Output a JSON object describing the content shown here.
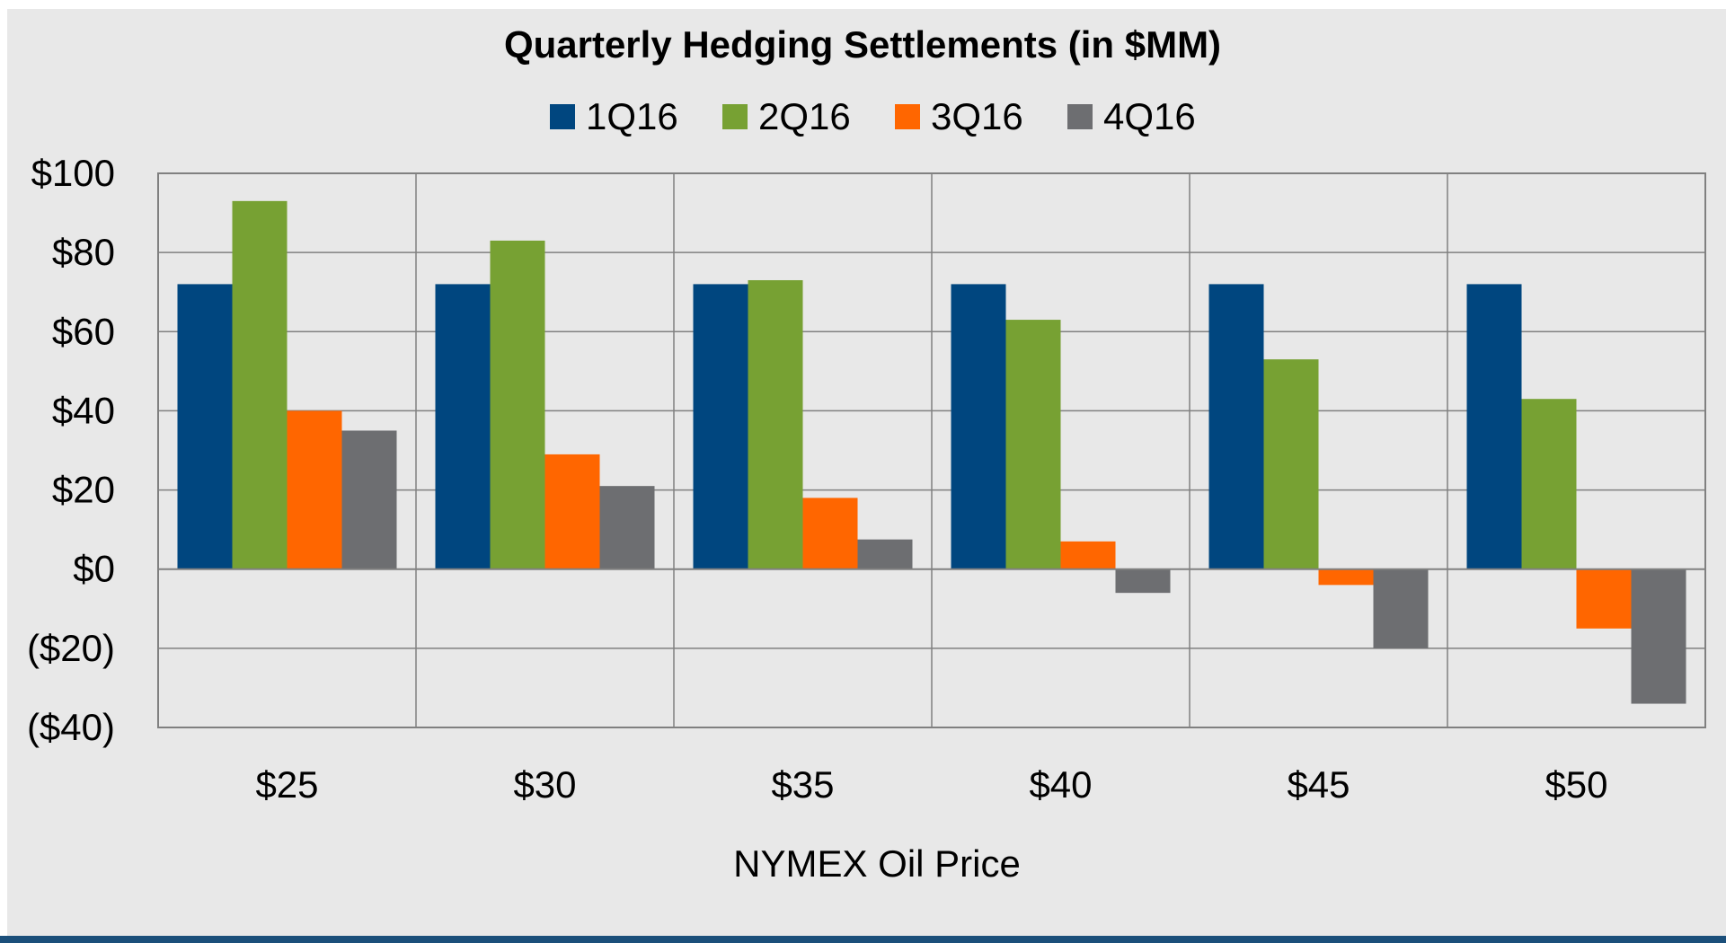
{
  "chart_data": {
    "type": "bar",
    "title": "Quarterly Hedging Settlements (in $MM)",
    "xlabel": "NYMEX Oil Price",
    "ylabel": "",
    "categories": [
      "$25",
      "$30",
      "$35",
      "$40",
      "$45",
      "$50"
    ],
    "series": [
      {
        "name": "1Q16",
        "color": "#00467f",
        "values": [
          72,
          72,
          72,
          72,
          72,
          72
        ]
      },
      {
        "name": "2Q16",
        "color": "#77a133",
        "values": [
          93,
          83,
          73,
          63,
          53,
          43
        ]
      },
      {
        "name": "3Q16",
        "color": "#ff6600",
        "values": [
          40,
          29,
          18,
          7,
          -4,
          -15
        ]
      },
      {
        "name": "4Q16",
        "color": "#6d6e71",
        "values": [
          35,
          21,
          7.5,
          -6,
          -20,
          -34
        ]
      }
    ],
    "ylim": [
      -40,
      100
    ],
    "yticks": [
      100,
      80,
      60,
      40,
      20,
      0,
      -20,
      -40
    ],
    "ytick_labels": [
      "$100",
      "$80",
      "$60",
      "$40",
      "$20",
      "$0",
      "($20)",
      "($40)"
    ],
    "grid": true,
    "legend_position": "top"
  }
}
